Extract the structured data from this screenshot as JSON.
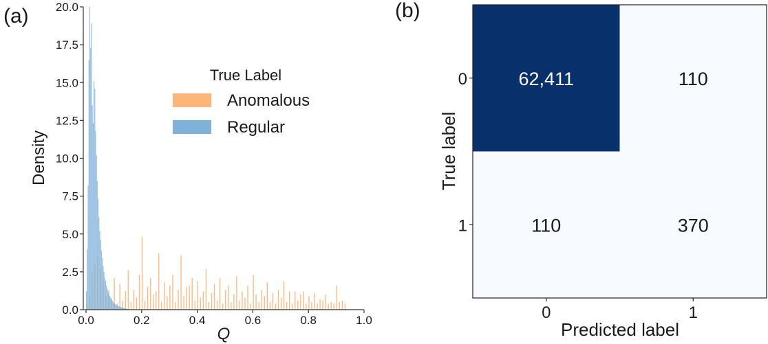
{
  "panel_a_label": "(a)",
  "panel_b_label": "(b)",
  "colors": {
    "anomalous": "#fdb57a",
    "regular": "#7fb2d9",
    "overlap": "#9e9e92",
    "cm_dark": "#08306b",
    "cm_light": "#f7fbff",
    "axis": "#333333"
  },
  "chart_data": [
    {
      "type": "histogram",
      "xlabel": "Q",
      "ylabel": "Density",
      "xlim": [
        -0.01,
        1.0
      ],
      "ylim": [
        0,
        20
      ],
      "x_ticks": [
        0.0,
        0.2,
        0.4,
        0.6,
        0.8,
        1.0
      ],
      "x_tick_labels": [
        "0.0",
        "0.2",
        "0.4",
        "0.6",
        "0.8",
        "1.0"
      ],
      "y_ticks": [
        0,
        2.5,
        5,
        7.5,
        10,
        12.5,
        15,
        17.5,
        20
      ],
      "y_tick_labels": [
        "0.0",
        "2.5",
        "5.0",
        "7.5",
        "10.0",
        "12.5",
        "15.0",
        "17.5",
        "20.0"
      ],
      "grid": false,
      "legend_title": "True Label",
      "legend_position": "upper-right",
      "series": [
        {
          "name": "Anomalous",
          "color": "#fdb57a",
          "bins": [
            [
              0.0,
              0.4
            ],
            [
              0.01,
              0.9
            ],
            [
              0.02,
              2.4
            ],
            [
              0.03,
              3.0
            ],
            [
              0.04,
              3.5
            ],
            [
              0.05,
              2.7
            ],
            [
              0.06,
              1.9
            ],
            [
              0.07,
              0.9
            ],
            [
              0.08,
              1.3
            ],
            [
              0.09,
              0.7
            ],
            [
              0.1,
              2.1
            ],
            [
              0.11,
              0.4
            ],
            [
              0.12,
              1.7
            ],
            [
              0.13,
              0.6
            ],
            [
              0.14,
              1.2
            ],
            [
              0.15,
              2.6
            ],
            [
              0.16,
              0.5
            ],
            [
              0.17,
              1.3
            ],
            [
              0.18,
              0.8
            ],
            [
              0.19,
              2.3
            ],
            [
              0.2,
              4.8
            ],
            [
              0.21,
              0.6
            ],
            [
              0.22,
              1.5
            ],
            [
              0.23,
              2.1
            ],
            [
              0.24,
              1.0
            ],
            [
              0.25,
              1.2
            ],
            [
              0.26,
              3.7
            ],
            [
              0.27,
              0.5
            ],
            [
              0.28,
              1.8
            ],
            [
              0.29,
              0.9
            ],
            [
              0.3,
              1.6
            ],
            [
              0.31,
              2.3
            ],
            [
              0.32,
              0.5
            ],
            [
              0.33,
              1.3
            ],
            [
              0.34,
              3.6
            ],
            [
              0.35,
              0.9
            ],
            [
              0.36,
              1.5
            ],
            [
              0.37,
              1.6
            ],
            [
              0.38,
              2.1
            ],
            [
              0.39,
              0.6
            ],
            [
              0.4,
              1.9
            ],
            [
              0.41,
              0.8
            ],
            [
              0.42,
              1.2
            ],
            [
              0.43,
              2.7
            ],
            [
              0.44,
              0.5
            ],
            [
              0.45,
              1.1
            ],
            [
              0.46,
              1.7
            ],
            [
              0.47,
              0.6
            ],
            [
              0.48,
              2.1
            ],
            [
              0.49,
              0.4
            ],
            [
              0.5,
              1.3
            ],
            [
              0.51,
              1.6
            ],
            [
              0.52,
              0.5
            ],
            [
              0.53,
              1.0
            ],
            [
              0.54,
              2.2
            ],
            [
              0.55,
              0.6
            ],
            [
              0.56,
              1.2
            ],
            [
              0.57,
              0.8
            ],
            [
              0.58,
              1.6
            ],
            [
              0.59,
              0.4
            ],
            [
              0.6,
              2.3
            ],
            [
              0.61,
              1.0
            ],
            [
              0.62,
              0.5
            ],
            [
              0.63,
              1.3
            ],
            [
              0.64,
              0.9
            ],
            [
              0.65,
              1.8
            ],
            [
              0.66,
              0.5
            ],
            [
              0.67,
              1.1
            ],
            [
              0.68,
              0.4
            ],
            [
              0.69,
              1.3
            ],
            [
              0.7,
              0.8
            ],
            [
              0.71,
              1.9
            ],
            [
              0.72,
              0.5
            ],
            [
              0.73,
              1.2
            ],
            [
              0.74,
              0.4
            ],
            [
              0.75,
              1.2
            ],
            [
              0.76,
              0.6
            ],
            [
              0.77,
              1.0
            ],
            [
              0.78,
              1.2
            ],
            [
              0.79,
              0.4
            ],
            [
              0.8,
              0.9
            ],
            [
              0.81,
              0.5
            ],
            [
              0.82,
              1.1
            ],
            [
              0.83,
              0.4
            ],
            [
              0.84,
              0.7
            ],
            [
              0.85,
              0.6
            ],
            [
              0.86,
              1.0
            ],
            [
              0.87,
              0.4
            ],
            [
              0.88,
              0.5
            ],
            [
              0.89,
              0.4
            ],
            [
              0.9,
              1.6
            ],
            [
              0.91,
              0.5
            ],
            [
              0.92,
              0.6
            ],
            [
              0.93,
              0.4
            ]
          ]
        },
        {
          "name": "Regular",
          "color": "#7fb2d9",
          "bins": [
            [
              0.0,
              1.2
            ],
            [
              0.003,
              4.0
            ],
            [
              0.006,
              8.2
            ],
            [
              0.009,
              16.5
            ],
            [
              0.012,
              20.0
            ],
            [
              0.015,
              17.3
            ],
            [
              0.018,
              18.9
            ],
            [
              0.021,
              13.5
            ],
            [
              0.024,
              12.3
            ],
            [
              0.027,
              15.1
            ],
            [
              0.03,
              14.6
            ],
            [
              0.033,
              11.8
            ],
            [
              0.036,
              10.2
            ],
            [
              0.039,
              8.5
            ],
            [
              0.042,
              7.3
            ],
            [
              0.045,
              6.1
            ],
            [
              0.048,
              5.2
            ],
            [
              0.051,
              4.6
            ],
            [
              0.054,
              3.9
            ],
            [
              0.057,
              3.4
            ],
            [
              0.06,
              2.9
            ],
            [
              0.063,
              2.5
            ],
            [
              0.066,
              2.1
            ],
            [
              0.069,
              1.9
            ],
            [
              0.072,
              1.6
            ],
            [
              0.075,
              1.4
            ],
            [
              0.078,
              1.2
            ],
            [
              0.081,
              1.0
            ],
            [
              0.084,
              0.9
            ],
            [
              0.087,
              0.8
            ],
            [
              0.09,
              0.7
            ],
            [
              0.093,
              0.6
            ],
            [
              0.096,
              0.5
            ],
            [
              0.099,
              0.45
            ],
            [
              0.102,
              0.4
            ],
            [
              0.105,
              0.35
            ],
            [
              0.108,
              0.3
            ],
            [
              0.111,
              0.28
            ],
            [
              0.114,
              0.25
            ],
            [
              0.117,
              0.22
            ],
            [
              0.12,
              0.2
            ],
            [
              0.123,
              0.18
            ],
            [
              0.126,
              0.16
            ],
            [
              0.129,
              0.14
            ],
            [
              0.132,
              0.12
            ],
            [
              0.135,
              0.1
            ],
            [
              0.138,
              0.09
            ],
            [
              0.141,
              0.08
            ],
            [
              0.144,
              0.07
            ],
            [
              0.147,
              0.06
            ],
            [
              0.15,
              0.05
            ]
          ]
        }
      ]
    },
    {
      "type": "heatmap",
      "xlabel": "Predicted label",
      "ylabel": "True label",
      "x_tick_labels": [
        "0",
        "1"
      ],
      "y_tick_labels": [
        "0",
        "1"
      ],
      "cells": [
        {
          "row": 0,
          "col": 0,
          "value": 62411,
          "label": "62,411"
        },
        {
          "row": 0,
          "col": 1,
          "value": 110,
          "label": "110"
        },
        {
          "row": 1,
          "col": 0,
          "value": 110,
          "label": "110"
        },
        {
          "row": 1,
          "col": 1,
          "value": 370,
          "label": "370"
        }
      ]
    }
  ]
}
